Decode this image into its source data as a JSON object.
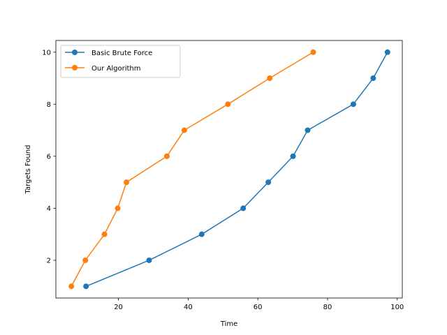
{
  "chart_data": {
    "type": "line",
    "title": "",
    "xlabel": "Time",
    "ylabel": "Targets Found",
    "xlim": [
      2.05,
      101.45
    ],
    "ylim": [
      0.55,
      10.45
    ],
    "xticks": [
      20,
      40,
      60,
      80,
      100
    ],
    "yticks": [
      2,
      4,
      6,
      8,
      10
    ],
    "grid": false,
    "legend_position": "upper-left",
    "series": [
      {
        "name": "Basic Brute Force",
        "color": "#1f77b4",
        "x": [
          10.7,
          28.8,
          43.9,
          55.8,
          63.0,
          70.1,
          74.3,
          87.4,
          93.1,
          97.2
        ],
        "y": [
          1,
          2,
          3,
          4,
          5,
          6,
          7,
          8,
          9,
          10
        ]
      },
      {
        "name": "Our Algorithm",
        "color": "#ff7f0e",
        "x": [
          6.5,
          10.5,
          16.0,
          19.8,
          22.3,
          33.9,
          38.9,
          51.4,
          63.4,
          75.9
        ],
        "y": [
          1,
          2,
          3,
          4,
          5,
          6,
          7,
          8,
          9,
          10
        ]
      }
    ]
  }
}
